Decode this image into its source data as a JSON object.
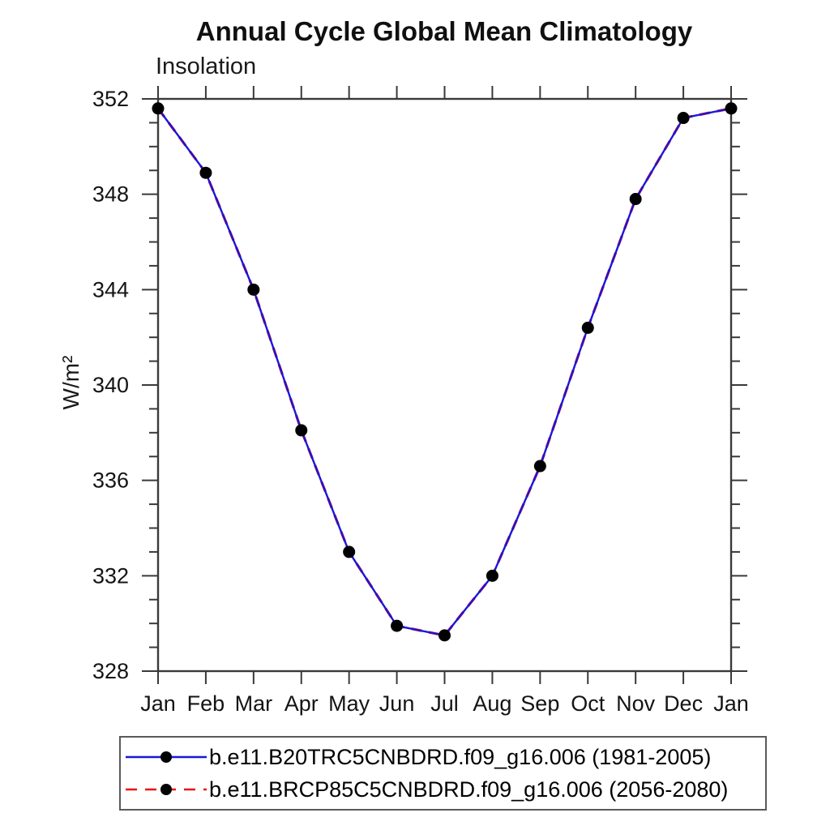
{
  "chart_data": {
    "type": "line",
    "title": "Annual Cycle Global Mean Climatology",
    "subtitle": "Insolation",
    "ylabel": "W/m²",
    "xlabel": "",
    "categories": [
      "Jan",
      "Feb",
      "Mar",
      "Apr",
      "May",
      "Jun",
      "Jul",
      "Aug",
      "Sep",
      "Oct",
      "Nov",
      "Dec",
      "Jan"
    ],
    "ylim": [
      328,
      352
    ],
    "ytick_major_step": 4,
    "ytick_minor_step": 1,
    "ytick_labels": [
      328,
      332,
      336,
      340,
      344,
      348,
      352
    ],
    "grid": false,
    "legend_position": "bottom",
    "axis_color": "#3a3a3a",
    "marker_color": "#000000",
    "series": [
      {
        "name": "b.e11.B20TRC5CNBDRD.f09_g16.006 (1981-2005)",
        "color": "#1717d9",
        "style": "solid",
        "marker": "circle",
        "values": [
          351.6,
          348.9,
          344.0,
          338.1,
          333.0,
          329.9,
          329.5,
          332.0,
          336.6,
          342.4,
          347.8,
          351.2,
          351.6
        ]
      },
      {
        "name": "b.e11.BRCP85C5CNBDRD.f09_g16.006 (2056-2080)",
        "color": "#ee1111",
        "style": "dashed",
        "marker": "circle",
        "values": [
          351.6,
          348.9,
          344.0,
          338.1,
          333.0,
          329.9,
          329.5,
          332.0,
          336.6,
          342.4,
          347.8,
          351.2,
          351.6
        ]
      }
    ]
  }
}
